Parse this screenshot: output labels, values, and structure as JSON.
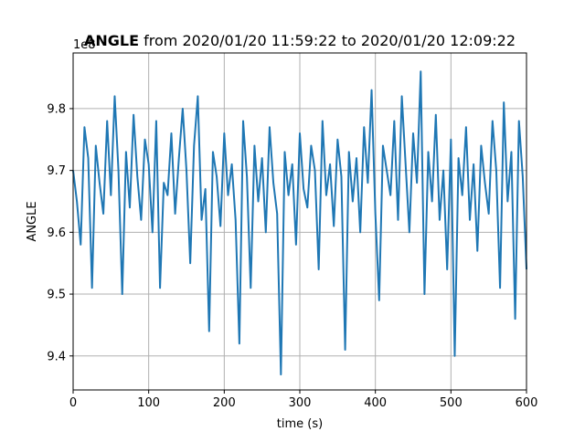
{
  "chart_data": {
    "type": "line",
    "title_bold": "ANGLE",
    "title_rest": " from 2020/01/20 11:59:22 to 2020/01/20 12:09:22",
    "xlabel": "time (s)",
    "ylabel": "ANGLE",
    "offset_text": "1e8",
    "xlim": [
      0,
      600
    ],
    "ylim": [
      9.345,
      9.89
    ],
    "xticks": [
      0,
      100,
      200,
      300,
      400,
      500,
      600
    ],
    "yticks": [
      9.4,
      9.5,
      9.6,
      9.7,
      9.8
    ],
    "xtick_labels": [
      "0",
      "100",
      "200",
      "300",
      "400",
      "500",
      "600"
    ],
    "ytick_labels": [
      "9.4",
      "9.5",
      "9.6",
      "9.7",
      "9.8"
    ],
    "grid": true,
    "line_color": "#1f77b4",
    "series": [
      {
        "x": [
          0,
          5,
          10,
          15,
          20,
          25,
          30,
          35,
          40,
          45,
          50,
          55,
          60,
          65,
          70,
          75,
          80,
          85,
          90,
          95,
          100,
          105,
          110,
          115,
          120,
          125,
          130,
          135,
          140,
          145,
          150,
          155,
          160,
          165,
          170,
          175,
          180,
          185,
          190,
          195,
          200,
          205,
          210,
          215,
          220,
          225,
          230,
          235,
          240,
          245,
          250,
          255,
          260,
          265,
          270,
          275,
          280,
          285,
          290,
          295,
          300,
          305,
          310,
          315,
          320,
          325,
          330,
          335,
          340,
          345,
          350,
          355,
          360,
          365,
          370,
          375,
          380,
          385,
          390,
          395,
          400,
          405,
          410,
          415,
          420,
          425,
          430,
          435,
          440,
          445,
          450,
          455,
          460,
          465,
          470,
          475,
          480,
          485,
          490,
          495,
          500,
          505,
          510,
          515,
          520,
          525,
          530,
          535,
          540,
          545,
          550,
          555,
          560,
          565,
          570,
          575,
          580,
          585,
          590,
          595,
          600
        ],
        "values": [
          9.7,
          9.65,
          9.58,
          9.77,
          9.72,
          9.51,
          9.74,
          9.68,
          9.63,
          9.78,
          9.66,
          9.82,
          9.7,
          9.5,
          9.73,
          9.64,
          9.79,
          9.69,
          9.62,
          9.75,
          9.71,
          9.6,
          9.78,
          9.51,
          9.68,
          9.66,
          9.76,
          9.63,
          9.72,
          9.8,
          9.7,
          9.55,
          9.74,
          9.82,
          9.62,
          9.67,
          9.44,
          9.73,
          9.69,
          9.61,
          9.76,
          9.66,
          9.71,
          9.62,
          9.42,
          9.78,
          9.69,
          9.51,
          9.74,
          9.65,
          9.72,
          9.6,
          9.77,
          9.68,
          9.63,
          9.37,
          9.73,
          9.66,
          9.71,
          9.58,
          9.76,
          9.67,
          9.64,
          9.74,
          9.7,
          9.54,
          9.78,
          9.66,
          9.71,
          9.61,
          9.75,
          9.69,
          9.41,
          9.73,
          9.65,
          9.72,
          9.6,
          9.77,
          9.68,
          9.83,
          9.63,
          9.49,
          9.74,
          9.7,
          9.66,
          9.78,
          9.62,
          9.82,
          9.71,
          9.6,
          9.76,
          9.68,
          9.86,
          9.5,
          9.73,
          9.65,
          9.79,
          9.62,
          9.7,
          9.54,
          9.75,
          9.4,
          9.72,
          9.66,
          9.77,
          9.62,
          9.71,
          9.57,
          9.74,
          9.68,
          9.63,
          9.78,
          9.7,
          9.51,
          9.81,
          9.65,
          9.73,
          9.46,
          9.78,
          9.69,
          9.54
        ]
      }
    ]
  }
}
